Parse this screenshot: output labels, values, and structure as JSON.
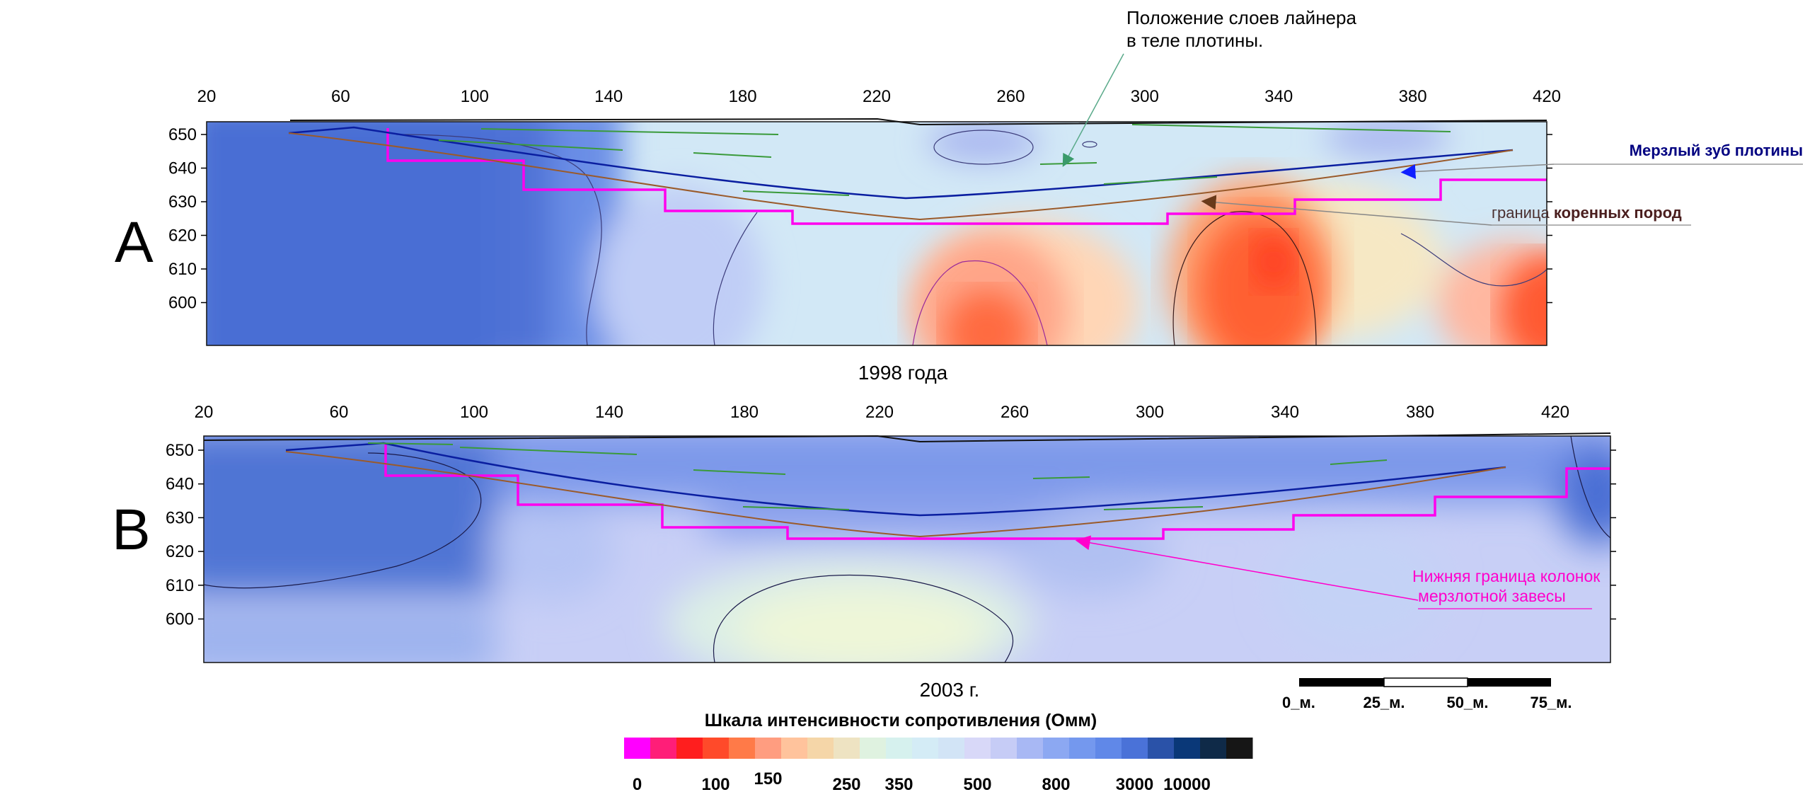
{
  "chart_data": [
    {
      "type": "heatmap",
      "panel_letter": "A",
      "caption": "1998 года",
      "x_ticks": [
        20,
        60,
        100,
        140,
        180,
        220,
        260,
        300,
        340,
        380,
        420
      ],
      "y_ticks": [
        650,
        640,
        630,
        620,
        610,
        600
      ],
      "xlim": [
        20,
        420
      ],
      "ylim": [
        587,
        653
      ],
      "rock_boundary_depth_min": 624,
      "hot_zones": [
        {
          "x": 260,
          "y": 592,
          "rx": 14,
          "ry": 14,
          "level": 100
        },
        {
          "x": 340,
          "y": 610,
          "rx": 18,
          "ry": 18,
          "level": 100
        },
        {
          "x": 420,
          "y": 595,
          "rx": 12,
          "ry": 12,
          "level": 150
        }
      ]
    },
    {
      "type": "heatmap",
      "panel_letter": "B",
      "caption": "2003 г.",
      "x_ticks": [
        20,
        60,
        100,
        140,
        180,
        220,
        260,
        300,
        340,
        380,
        420
      ],
      "y_ticks": [
        650,
        640,
        630,
        620,
        610,
        600
      ],
      "xlim": [
        20,
        420
      ],
      "ylim": [
        587,
        653
      ],
      "rock_boundary_depth_min": 624,
      "warm_zones": [
        {
          "x": 225,
          "y": 595,
          "rx": 28,
          "ry": 10,
          "level": 300
        }
      ]
    }
  ],
  "annotations": {
    "liner_layers_line1": "Положение слоев лайнера",
    "liner_layers_line2": "в теле плотины.",
    "frozen_core": "Мерзлый зуб  плотины",
    "bedrock_prefix": "граница ",
    "bedrock_bold": "коренных пород",
    "curtain_line1": "Нижняя граница колонок",
    "curtain_line2": "мерзлотной завесы"
  },
  "scale_bar": {
    "labels": [
      "0_м.",
      "25_м.",
      "50_м.",
      "75_м."
    ]
  },
  "color_scale": {
    "title": "Шкала интенсивности сопротивления (Омм)",
    "colors": [
      "#ff00ff",
      "#ff1e78",
      "#ff1e1e",
      "#ff4a2a",
      "#ff7a48",
      "#ff9d80",
      "#ffc39c",
      "#f5d6a8",
      "#eee3c2",
      "#dff2e0",
      "#d6f1ee",
      "#d4ecf6",
      "#d2e4f6",
      "#d8d8f8",
      "#c6ccf6",
      "#a8b8f4",
      "#8ca8f2",
      "#7498ee",
      "#6088e8",
      "#4a72d8",
      "#2a52a8",
      "#0a3878",
      "#0f2a48",
      "#161616"
    ],
    "tick_labels": [
      "0",
      "100",
      "150",
      "250",
      "350",
      "500",
      "800",
      "3000",
      "10000"
    ],
    "tick_positions": [
      0,
      3,
      5,
      8,
      10,
      13,
      16,
      19,
      21
    ]
  },
  "colors": {
    "pink_line": "#ff00ee",
    "blue_line": "#0a1ea0",
    "brown_line": "#9a5a2a",
    "green_lines": "#3a9a3a",
    "frozen_label": "#000080",
    "bedrock_label": "#4a1e1e"
  }
}
